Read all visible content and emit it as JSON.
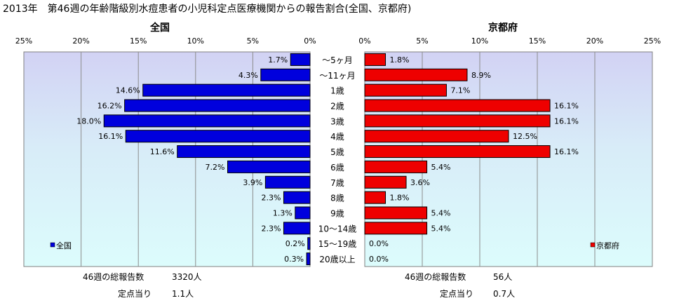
{
  "title": "2013年　第46週の年齢階級別水痘患者の小児科定点医療機関からの報告割合(全国、京都府)",
  "chart_data": {
    "type": "bar",
    "orientation": "horizontal-butterfly",
    "categories": [
      "～5ヶ月",
      "～11ヶ月",
      "1歳",
      "2歳",
      "3歳",
      "4歳",
      "5歳",
      "6歳",
      "7歳",
      "8歳",
      "9歳",
      "10～14歳",
      "15～19歳",
      "20歳以上"
    ],
    "xlim": [
      0,
      25
    ],
    "ticks": [
      0,
      5,
      10,
      15,
      20,
      25
    ],
    "tick_suffix": "%",
    "grid": true,
    "series": [
      {
        "name": "全国",
        "side": "left",
        "color": "#0000dd",
        "values": [
          1.7,
          4.3,
          14.6,
          16.2,
          18.0,
          16.1,
          11.6,
          7.2,
          3.9,
          2.3,
          1.3,
          2.3,
          0.2,
          0.3
        ],
        "value_labels": [
          "1.7%",
          "4.3%",
          "14.6%",
          "16.2%",
          "18.0%",
          "16.1%",
          "11.6%",
          "7.2%",
          "3.9%",
          "2.3%",
          "1.3%",
          "2.3%",
          "0.2%",
          "0.3%"
        ]
      },
      {
        "name": "京都府",
        "side": "right",
        "color": "#ee0000",
        "values": [
          1.8,
          8.9,
          7.1,
          16.1,
          16.1,
          12.5,
          16.1,
          5.4,
          3.6,
          1.8,
          5.4,
          5.4,
          0.0,
          0.0
        ],
        "value_labels": [
          "1.8%",
          "8.9%",
          "7.1%",
          "16.1%",
          "16.1%",
          "12.5%",
          "16.1%",
          "5.4%",
          "3.6%",
          "1.8%",
          "5.4%",
          "5.4%",
          "0.0%",
          "0.0%"
        ]
      }
    ]
  },
  "footer": {
    "national_total_label": "46週の総報告数",
    "national_total_value": "3320人",
    "national_per_label": "定点当り",
    "national_per_value": "1.1人",
    "kyoto_total_label": "46週の総報告数",
    "kyoto_total_value": "56人",
    "kyoto_per_label": "定点当り",
    "kyoto_per_value": "0.7人"
  }
}
